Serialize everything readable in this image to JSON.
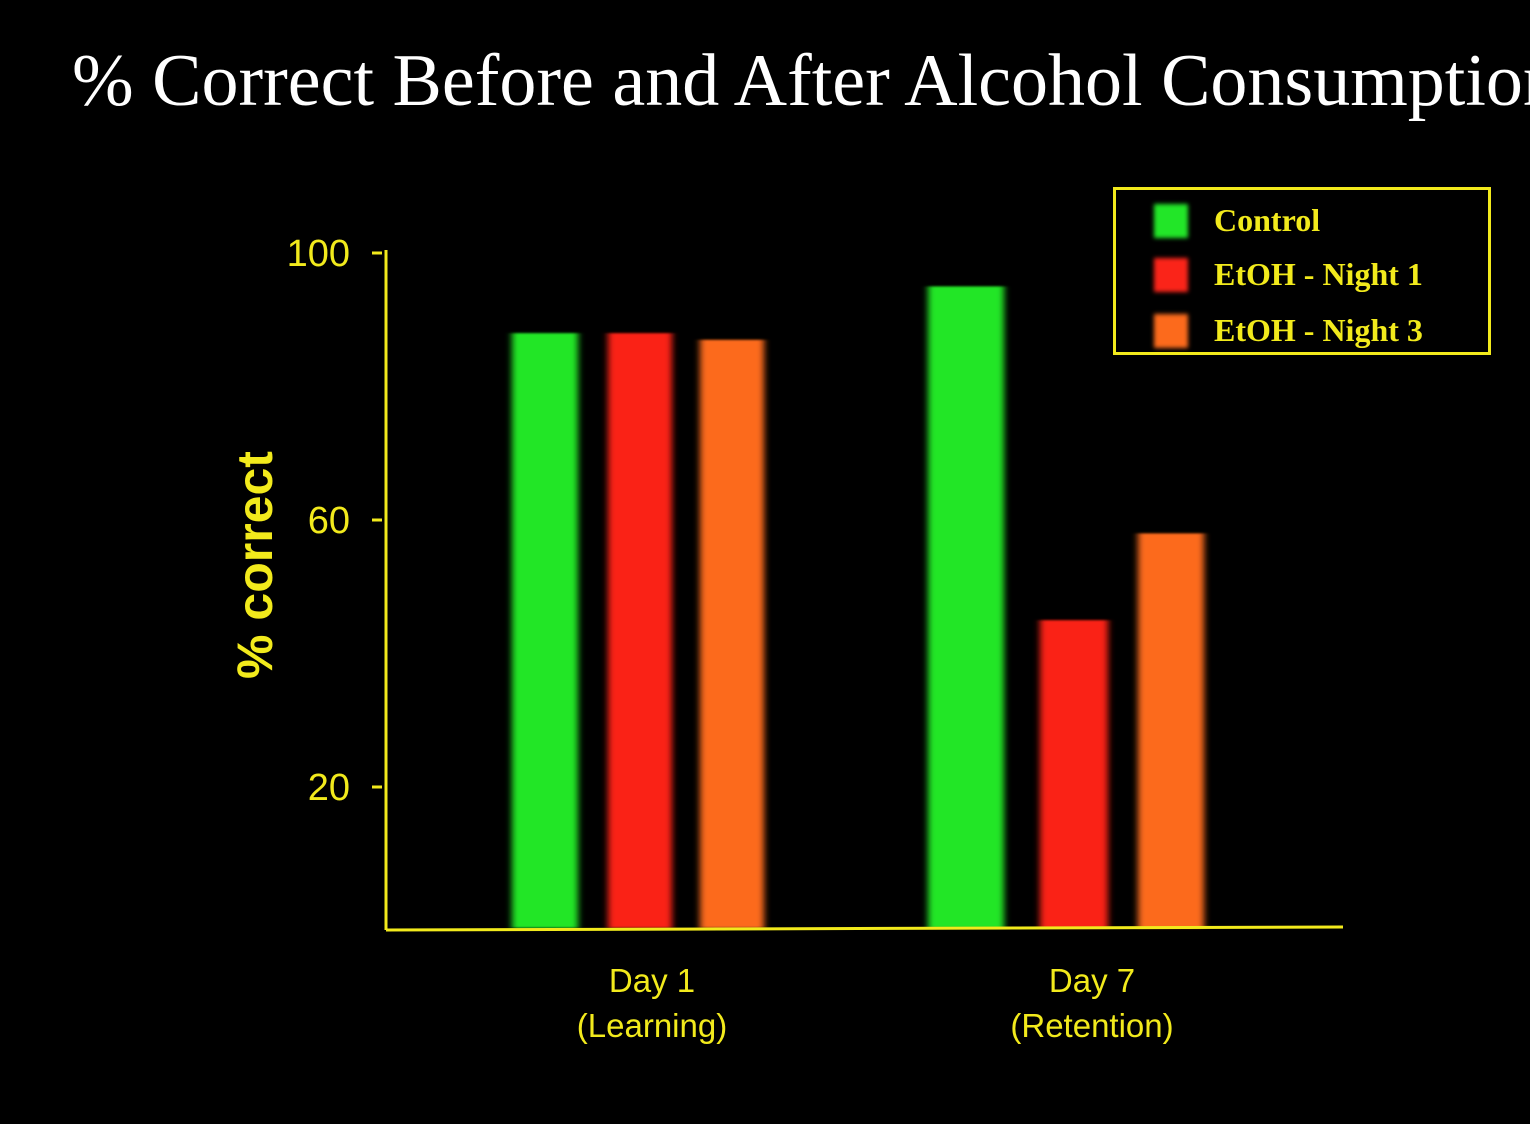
{
  "title": "% Correct Before and After Alcohol Consumption:",
  "chart_data": {
    "type": "bar",
    "title": "% Correct Before and After Alcohol Consumption:",
    "xlabel": "",
    "ylabel": "% correct",
    "categories": [
      "Day 1\n(Learning)",
      "Day 7\n(Retention)"
    ],
    "category_lines": [
      [
        "Day 1",
        "(Learning)"
      ],
      [
        "Day 7",
        "(Retention)"
      ]
    ],
    "yticks": [
      20,
      60,
      100
    ],
    "ylim": [
      0,
      100
    ],
    "grid": false,
    "legend_position": "top-right",
    "series": [
      {
        "name": "Control",
        "color": "#22e628",
        "values": [
          88,
          95
        ]
      },
      {
        "name": "EtOH - Night 1",
        "color": "#fa2419",
        "values": [
          88,
          45
        ]
      },
      {
        "name": "EtOH - Night 3",
        "color": "#fc6a1c",
        "values": [
          87,
          58
        ]
      }
    ]
  },
  "colors": {
    "background": "#000000",
    "title": "#ffffff",
    "axis": "#f2ea1c"
  }
}
